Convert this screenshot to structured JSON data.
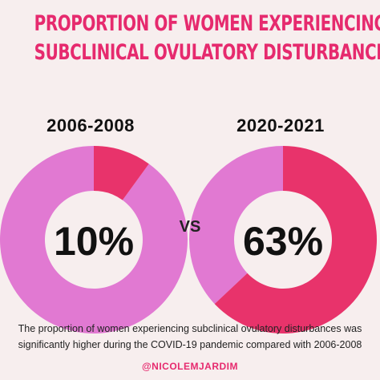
{
  "title": {
    "line1": "PROPORTION OF WOMEN EXPERIENCING",
    "line2": "SUBCLINICAL OVULATORY DISTURBANCES"
  },
  "vs_label": "VS",
  "caption": "The proportion of women experiencing subclinical ovulatory disturbances was significantly higher during the COVID-19 pandemic compared with 2006-2008",
  "handle": "@NICOLEMJARDIM",
  "colors": {
    "highlight": "#e8336b",
    "remainder": "#e179d2",
    "title": "#e62a6e",
    "background": "#f7eeee"
  },
  "chart_data": [
    {
      "type": "pie",
      "title": "2006-2008",
      "center_label": "10%",
      "value": 10,
      "unit": "%",
      "primary_color": "#e8336b",
      "remainder_color": "#e179d2"
    },
    {
      "type": "pie",
      "title": "2020-2021",
      "center_label": "63%",
      "value": 63,
      "unit": "%",
      "primary_color": "#e8336b",
      "remainder_color": "#e179d2"
    }
  ]
}
